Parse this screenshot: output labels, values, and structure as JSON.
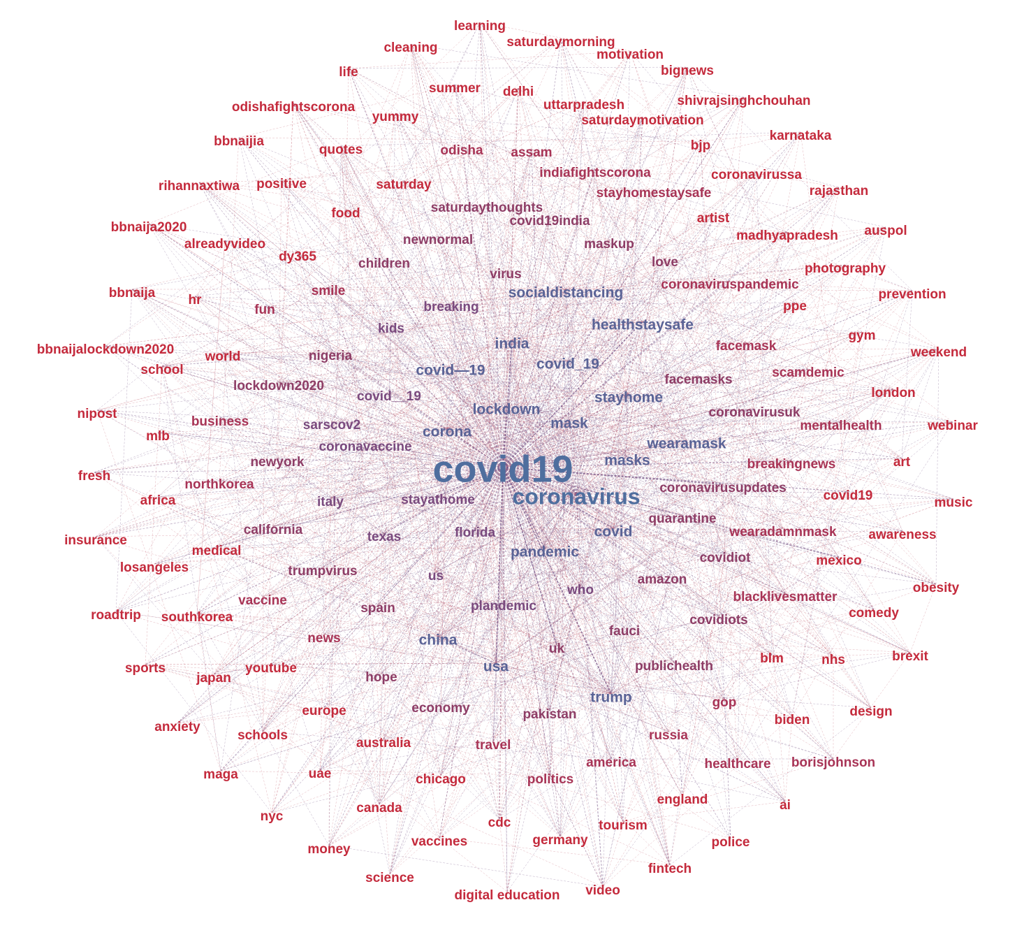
{
  "palette": {
    "hub": "#4F6E9E",
    "mid_blue": "#5A6396",
    "purple": "#7A4A7E",
    "mauve": "#8E3D66",
    "rose": "#A83456",
    "red": "#C42A3C",
    "edge_red": "#C86B7A",
    "edge_purple": "#7A5A8A"
  },
  "nodes": [
    {
      "id": "covid19",
      "label": "covid19",
      "tier": 0
    },
    {
      "id": "coronavirus",
      "label": "coronavirus",
      "tier": 1
    },
    {
      "id": "pandemic",
      "label": "pandemic",
      "tier": 2
    },
    {
      "id": "lockdown",
      "label": "lockdown",
      "tier": 2
    },
    {
      "id": "india",
      "label": "india",
      "tier": 2
    },
    {
      "id": "covid",
      "label": "covid",
      "tier": 2
    },
    {
      "id": "socialdistancing",
      "label": "socialdistancing",
      "tier": 2
    },
    {
      "id": "healthstaysafe",
      "label": "healthstaysafe",
      "tier": 2
    },
    {
      "id": "corona",
      "label": "corona",
      "tier": 2
    },
    {
      "id": "covid_dash_19",
      "label": "covid—19",
      "tier": 2
    },
    {
      "id": "covid_19",
      "label": "covid_19",
      "tier": 2
    },
    {
      "id": "stayhome",
      "label": "stayhome",
      "tier": 2
    },
    {
      "id": "mask",
      "label": "mask",
      "tier": 2
    },
    {
      "id": "wearamask",
      "label": "wearamask",
      "tier": 2
    },
    {
      "id": "masks",
      "label": "masks",
      "tier": 2
    },
    {
      "id": "china",
      "label": "china",
      "tier": 2
    },
    {
      "id": "usa",
      "label": "usa",
      "tier": 2
    },
    {
      "id": "trump",
      "label": "trump",
      "tier": 2
    },
    {
      "id": "us",
      "label": "us",
      "tier": 3
    },
    {
      "id": "uk",
      "label": "uk",
      "tier": 3
    },
    {
      "id": "quarantine",
      "label": "quarantine",
      "tier": 3
    },
    {
      "id": "stayathome",
      "label": "stayathome",
      "tier": 3
    },
    {
      "id": "florida",
      "label": "florida",
      "tier": 3
    },
    {
      "id": "breaking",
      "label": "breaking",
      "tier": 3
    },
    {
      "id": "virus",
      "label": "virus",
      "tier": 3
    },
    {
      "id": "sarscov2",
      "label": "sarscov2",
      "tier": 3
    },
    {
      "id": "coronavaccine",
      "label": "coronavaccine",
      "tier": 3
    },
    {
      "id": "covid__19",
      "label": "covid__19",
      "tier": 3
    },
    {
      "id": "nigeria",
      "label": "nigeria",
      "tier": 3
    },
    {
      "id": "facemask",
      "label": "facemask",
      "tier": 3
    },
    {
      "id": "facemasks",
      "label": "facemasks",
      "tier": 3
    },
    {
      "id": "travel",
      "label": "travel",
      "tier": 3
    },
    {
      "id": "maskup",
      "label": "maskup",
      "tier": 3
    },
    {
      "id": "coronavirusupdates",
      "label": "coronavirusupdates",
      "tier": 3
    },
    {
      "id": "coronaviruspandemic",
      "label": "coronaviruspandemic",
      "tier": 3
    },
    {
      "id": "stayhomestaysafe",
      "label": "stayhomestaysafe",
      "tier": 3
    },
    {
      "id": "indiafightscorona",
      "label": "indiafightscorona",
      "tier": 3
    },
    {
      "id": "newnormal",
      "label": "newnormal",
      "tier": 3
    },
    {
      "id": "covid19india",
      "label": "covid19india",
      "tier": 3
    },
    {
      "id": "saturdaythoughts",
      "label": "saturdaythoughts",
      "tier": 3
    },
    {
      "id": "love",
      "label": "love",
      "tier": 3
    },
    {
      "id": "odisha",
      "label": "odisha",
      "tier": 3
    },
    {
      "id": "assam",
      "label": "assam",
      "tier": 3
    },
    {
      "id": "coronavirusuk",
      "label": "coronavirusuk",
      "tier": 3
    },
    {
      "id": "breakingnews",
      "label": "breakingnews",
      "tier": 3
    },
    {
      "id": "wearadamnmask",
      "label": "wearadamnmask",
      "tier": 3
    },
    {
      "id": "spain",
      "label": "spain",
      "tier": 3
    },
    {
      "id": "texas",
      "label": "texas",
      "tier": 3
    },
    {
      "id": "italy",
      "label": "italy",
      "tier": 3
    },
    {
      "id": "newyork",
      "label": "newyork",
      "tier": 3
    },
    {
      "id": "california",
      "label": "california",
      "tier": 3
    },
    {
      "id": "plandemic",
      "label": "plandemic",
      "tier": 3
    },
    {
      "id": "who",
      "label": "who",
      "tier": 3
    },
    {
      "id": "amazon",
      "label": "amazon",
      "tier": 3
    },
    {
      "id": "kids",
      "label": "kids",
      "tier": 3
    },
    {
      "id": "children",
      "label": "children",
      "tier": 3
    },
    {
      "id": "lockdown2020",
      "label": "lockdown2020",
      "tier": 3
    },
    {
      "id": "mentalhealth",
      "label": "mentalhealth",
      "tier": 3
    },
    {
      "id": "scamdemic",
      "label": "scamdemic",
      "tier": 3
    },
    {
      "id": "covidiot",
      "label": "covidiot",
      "tier": 3
    },
    {
      "id": "covidiots",
      "label": "covidiots",
      "tier": 3
    },
    {
      "id": "fauci",
      "label": "fauci",
      "tier": 3
    },
    {
      "id": "economy",
      "label": "economy",
      "tier": 3
    },
    {
      "id": "pakistan",
      "label": "pakistan",
      "tier": 3
    },
    {
      "id": "publichealth",
      "label": "publichealth",
      "tier": 3
    },
    {
      "id": "gop",
      "label": "gop",
      "tier": 3
    },
    {
      "id": "russia",
      "label": "russia",
      "tier": 3
    },
    {
      "id": "america",
      "label": "america",
      "tier": 3
    },
    {
      "id": "politics",
      "label": "politics",
      "tier": 3
    },
    {
      "id": "trumpvirus",
      "label": "trumpvirus",
      "tier": 3
    },
    {
      "id": "hope",
      "label": "hope",
      "tier": 3
    },
    {
      "id": "blacklivesmatter",
      "label": "blacklivesmatter",
      "tier": 3
    },
    {
      "id": "healthcare",
      "label": "healthcare",
      "tier": 3
    },
    {
      "id": "borisjohnson",
      "label": "borisjohnson",
      "tier": 3
    },
    {
      "id": "learning",
      "label": "learning",
      "tier": 4
    },
    {
      "id": "saturdaymorning",
      "label": "saturdaymorning",
      "tier": 4
    },
    {
      "id": "cleaning",
      "label": "cleaning",
      "tier": 4
    },
    {
      "id": "motivation",
      "label": "motivation",
      "tier": 4
    },
    {
      "id": "life",
      "label": "life",
      "tier": 4
    },
    {
      "id": "bignews",
      "label": "bignews",
      "tier": 4
    },
    {
      "id": "summer",
      "label": "summer",
      "tier": 4
    },
    {
      "id": "delhi",
      "label": "delhi",
      "tier": 4
    },
    {
      "id": "shivrajsinghchouhan",
      "label": "shivrajsinghchouhan",
      "tier": 4
    },
    {
      "id": "odishafightscorona",
      "label": "odishafightscorona",
      "tier": 4
    },
    {
      "id": "uttarpradesh",
      "label": "uttarpradesh",
      "tier": 4
    },
    {
      "id": "yummy",
      "label": "yummy",
      "tier": 4
    },
    {
      "id": "saturdaymotivation",
      "label": "saturdaymotivation",
      "tier": 4
    },
    {
      "id": "bbnaijia",
      "label": "bbnaijia",
      "tier": 4
    },
    {
      "id": "karnataka",
      "label": "karnataka",
      "tier": 4
    },
    {
      "id": "bjp",
      "label": "bjp",
      "tier": 4
    },
    {
      "id": "quotes",
      "label": "quotes",
      "tier": 4
    },
    {
      "id": "coronavirussa",
      "label": "coronavirussa",
      "tier": 4
    },
    {
      "id": "rihannaxtiwa",
      "label": "rihannaxtiwa",
      "tier": 4
    },
    {
      "id": "positive",
      "label": "positive",
      "tier": 4
    },
    {
      "id": "saturday",
      "label": "saturday",
      "tier": 4
    },
    {
      "id": "rajasthan",
      "label": "rajasthan",
      "tier": 4
    },
    {
      "id": "food",
      "label": "food",
      "tier": 4
    },
    {
      "id": "artist",
      "label": "artist",
      "tier": 4
    },
    {
      "id": "bbnaija2020",
      "label": "bbnaija2020",
      "tier": 4
    },
    {
      "id": "auspol",
      "label": "auspol",
      "tier": 4
    },
    {
      "id": "alreadyvideo",
      "label": "alreadyvideo",
      "tier": 4
    },
    {
      "id": "madhyapradesh",
      "label": "madhyapradesh",
      "tier": 4
    },
    {
      "id": "dy365",
      "label": "dy365",
      "tier": 4
    },
    {
      "id": "photography",
      "label": "photography",
      "tier": 4
    },
    {
      "id": "bbnaija",
      "label": "bbnaija",
      "tier": 4
    },
    {
      "id": "smile",
      "label": "smile",
      "tier": 4
    },
    {
      "id": "prevention",
      "label": "prevention",
      "tier": 4
    },
    {
      "id": "hr",
      "label": "hr",
      "tier": 4
    },
    {
      "id": "fun",
      "label": "fun",
      "tier": 4
    },
    {
      "id": "ppe",
      "label": "ppe",
      "tier": 4
    },
    {
      "id": "gym",
      "label": "gym",
      "tier": 4
    },
    {
      "id": "bbnaijalockdown2020",
      "label": "bbnaijalockdown2020",
      "tier": 4
    },
    {
      "id": "weekend",
      "label": "weekend",
      "tier": 4
    },
    {
      "id": "world",
      "label": "world",
      "tier": 4
    },
    {
      "id": "school",
      "label": "school",
      "tier": 4
    },
    {
      "id": "london",
      "label": "london",
      "tier": 4
    },
    {
      "id": "nipost",
      "label": "nipost",
      "tier": 4
    },
    {
      "id": "business",
      "label": "business",
      "tier": 4
    },
    {
      "id": "webinar",
      "label": "webinar",
      "tier": 4
    },
    {
      "id": "mlb",
      "label": "mlb",
      "tier": 4
    },
    {
      "id": "art",
      "label": "art",
      "tier": 4
    },
    {
      "id": "fresh",
      "label": "fresh",
      "tier": 4
    },
    {
      "id": "northkorea",
      "label": "northkorea",
      "tier": 4
    },
    {
      "id": "covid19_b",
      "label": "covid19",
      "tier": 4
    },
    {
      "id": "africa",
      "label": "africa",
      "tier": 4
    },
    {
      "id": "music",
      "label": "music",
      "tier": 4
    },
    {
      "id": "insurance",
      "label": "insurance",
      "tier": 4
    },
    {
      "id": "awareness",
      "label": "awareness",
      "tier": 4
    },
    {
      "id": "medical",
      "label": "medical",
      "tier": 4
    },
    {
      "id": "mexico",
      "label": "mexico",
      "tier": 4
    },
    {
      "id": "losangeles",
      "label": "losangeles",
      "tier": 4
    },
    {
      "id": "obesity",
      "label": "obesity",
      "tier": 4
    },
    {
      "id": "vaccine",
      "label": "vaccine",
      "tier": 4
    },
    {
      "id": "roadtrip",
      "label": "roadtrip",
      "tier": 4
    },
    {
      "id": "southkorea",
      "label": "southkorea",
      "tier": 4
    },
    {
      "id": "comedy",
      "label": "comedy",
      "tier": 4
    },
    {
      "id": "news",
      "label": "news",
      "tier": 4
    },
    {
      "id": "sports",
      "label": "sports",
      "tier": 4
    },
    {
      "id": "brexit",
      "label": "brexit",
      "tier": 4
    },
    {
      "id": "blm",
      "label": "blm",
      "tier": 4
    },
    {
      "id": "nhs",
      "label": "nhs",
      "tier": 4
    },
    {
      "id": "japan",
      "label": "japan",
      "tier": 4
    },
    {
      "id": "youtube",
      "label": "youtube",
      "tier": 4
    },
    {
      "id": "europe",
      "label": "europe",
      "tier": 4
    },
    {
      "id": "design",
      "label": "design",
      "tier": 4
    },
    {
      "id": "anxiety",
      "label": "anxiety",
      "tier": 4
    },
    {
      "id": "biden",
      "label": "biden",
      "tier": 4
    },
    {
      "id": "schools",
      "label": "schools",
      "tier": 4
    },
    {
      "id": "australia",
      "label": "australia",
      "tier": 4
    },
    {
      "id": "maga",
      "label": "maga",
      "tier": 4
    },
    {
      "id": "uae",
      "label": "uae",
      "tier": 4
    },
    {
      "id": "chicago",
      "label": "chicago",
      "tier": 4
    },
    {
      "id": "england",
      "label": "england",
      "tier": 4
    },
    {
      "id": "ai",
      "label": "ai",
      "tier": 4
    },
    {
      "id": "nyc",
      "label": "nyc",
      "tier": 4
    },
    {
      "id": "canada",
      "label": "canada",
      "tier": 4
    },
    {
      "id": "cdc",
      "label": "cdc",
      "tier": 4
    },
    {
      "id": "tourism",
      "label": "tourism",
      "tier": 4
    },
    {
      "id": "vaccines",
      "label": "vaccines",
      "tier": 4
    },
    {
      "id": "germany",
      "label": "germany",
      "tier": 4
    },
    {
      "id": "police",
      "label": "police",
      "tier": 4
    },
    {
      "id": "money",
      "label": "money",
      "tier": 4
    },
    {
      "id": "fintech",
      "label": "fintech",
      "tier": 4
    },
    {
      "id": "science",
      "label": "science",
      "tier": 4
    },
    {
      "id": "video",
      "label": "video",
      "tier": 4
    },
    {
      "id": "digital_education",
      "label": "digital education",
      "tier": 4
    }
  ]
}
